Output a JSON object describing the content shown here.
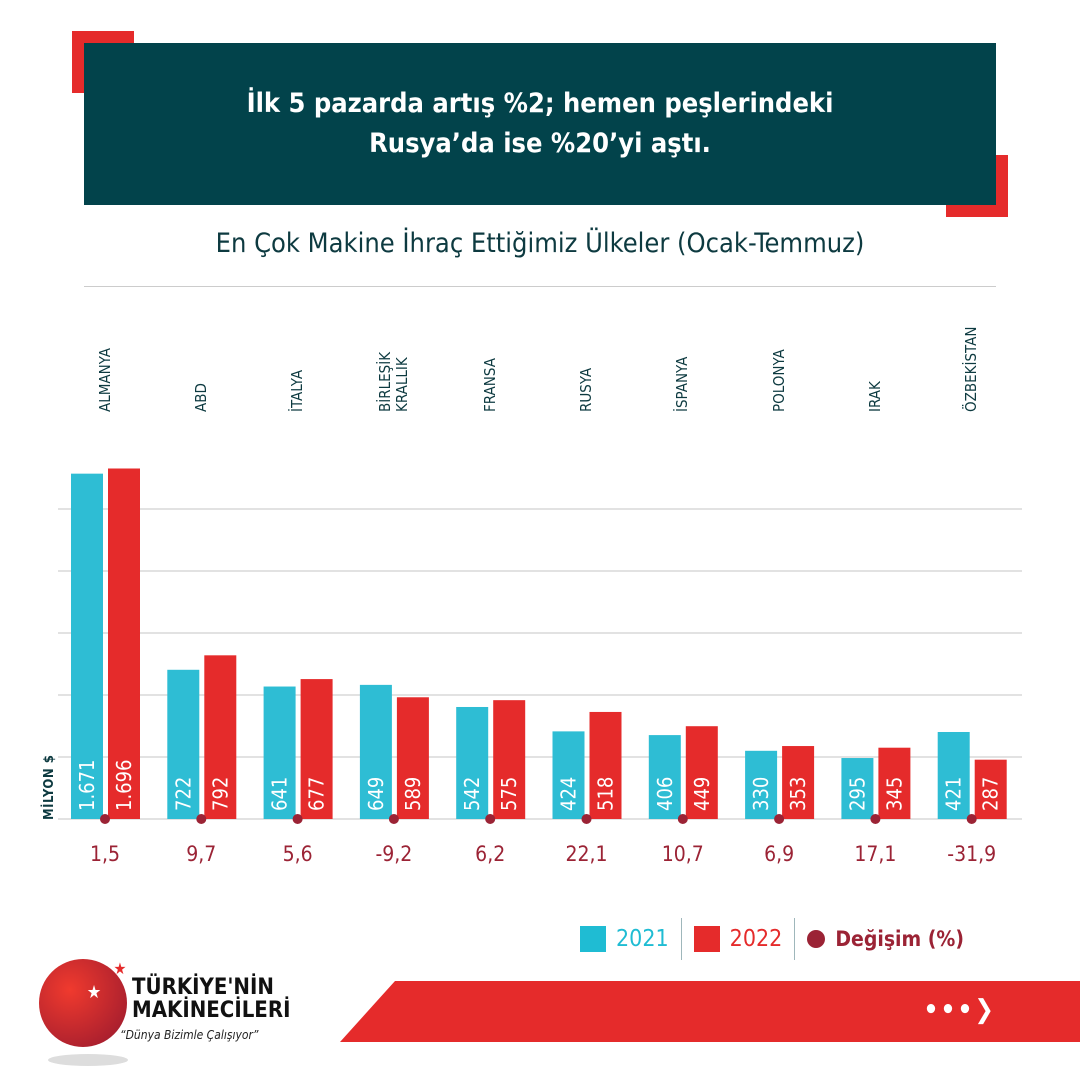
{
  "headline": {
    "line1": "İlk 5 pazarda artış %2; hemen peşlerindeki",
    "line2": "Rusya’da ise %20’yi aştı."
  },
  "chart_data": {
    "type": "bar",
    "title": "En Çok Makine İhraç Ettiğimiz Ülkeler (Ocak-Temmuz)",
    "ylabel": "MİLYON $",
    "ylim": [
      0,
      1700
    ],
    "grid": true,
    "legend_position": "bottom-right",
    "categories": [
      "ALMANYA",
      "ABD",
      "İTALYA",
      "BİRLEŞİK\nKRALLIK",
      "FRANSA",
      "RUSYA",
      "İSPANYA",
      "POLONYA",
      "IRAK",
      "ÖZBEKİSTAN"
    ],
    "series": [
      {
        "name": "2021",
        "color": "#2ebdd4",
        "values": [
          1671,
          722,
          641,
          649,
          542,
          424,
          406,
          330,
          295,
          421
        ],
        "labels": [
          "1.671",
          "722",
          "641",
          "649",
          "542",
          "424",
          "406",
          "330",
          "295",
          "421"
        ]
      },
      {
        "name": "2022",
        "color": "#e52b2b",
        "values": [
          1696,
          792,
          677,
          589,
          575,
          518,
          449,
          353,
          345,
          287
        ],
        "labels": [
          "1.696",
          "792",
          "677",
          "589",
          "575",
          "518",
          "449",
          "353",
          "345",
          "287"
        ]
      }
    ],
    "change": {
      "name": "Değişim (%)",
      "color": "#9b2335",
      "values": [
        "1,5",
        "9,7",
        "5,6",
        "-9,2",
        "6,2",
        "22,1",
        "10,7",
        "6,9",
        "17,1",
        "-31,9"
      ]
    }
  },
  "logo": {
    "line1": "TÜRKİYE'NİN",
    "line2": "MAKİNECİLERİ",
    "slogan": "“Dünya Bizimle Çalışıyor”"
  },
  "footer": {
    "next_label": "•••❯"
  }
}
